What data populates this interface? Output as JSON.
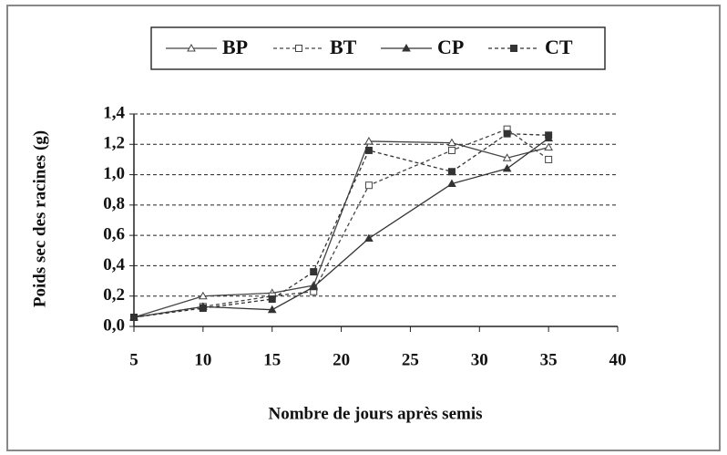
{
  "chart_data": {
    "type": "line",
    "y_label": "Poids sec des racines (g)",
    "x_label": "Nombre de jours après semis",
    "x": [
      5,
      10,
      15,
      18,
      22,
      28,
      32,
      35
    ],
    "series": [
      {
        "name": "BP",
        "color": "#444444",
        "dash": "solid",
        "marker": "triangle-open",
        "values": [
          0.06,
          0.2,
          0.22,
          0.27,
          1.22,
          1.21,
          1.11,
          1.18
        ]
      },
      {
        "name": "BT",
        "color": "#444444",
        "dash": "dashed",
        "marker": "square-open",
        "values": [
          0.06,
          0.13,
          0.2,
          0.23,
          0.93,
          1.16,
          1.3,
          1.1
        ]
      },
      {
        "name": "CP",
        "color": "#333333",
        "dash": "solid",
        "marker": "triangle-filled",
        "values": [
          0.06,
          0.13,
          0.11,
          0.26,
          0.58,
          0.94,
          1.04,
          1.24
        ]
      },
      {
        "name": "CT",
        "color": "#333333",
        "dash": "dashed",
        "marker": "square-filled",
        "values": [
          0.06,
          0.12,
          0.18,
          0.36,
          1.16,
          1.02,
          1.27,
          1.26
        ]
      }
    ],
    "xlim": [
      5,
      40
    ],
    "xticks": [
      5,
      10,
      15,
      20,
      25,
      30,
      35,
      40
    ],
    "ylim": [
      0,
      1.4
    ],
    "yticks": [
      {
        "value": 0,
        "label": "0,0"
      },
      {
        "value": 0.2,
        "label": "0,2"
      },
      {
        "value": 0.4,
        "label": "0,4"
      },
      {
        "value": 0.6,
        "label": "0,6"
      },
      {
        "value": 0.8,
        "label": "0,8"
      },
      {
        "value": 1.0,
        "label": "1,0"
      },
      {
        "value": 1.2,
        "label": "1,2"
      },
      {
        "value": 1.4,
        "label": "1,4"
      }
    ],
    "grid": true,
    "legend": "top"
  }
}
